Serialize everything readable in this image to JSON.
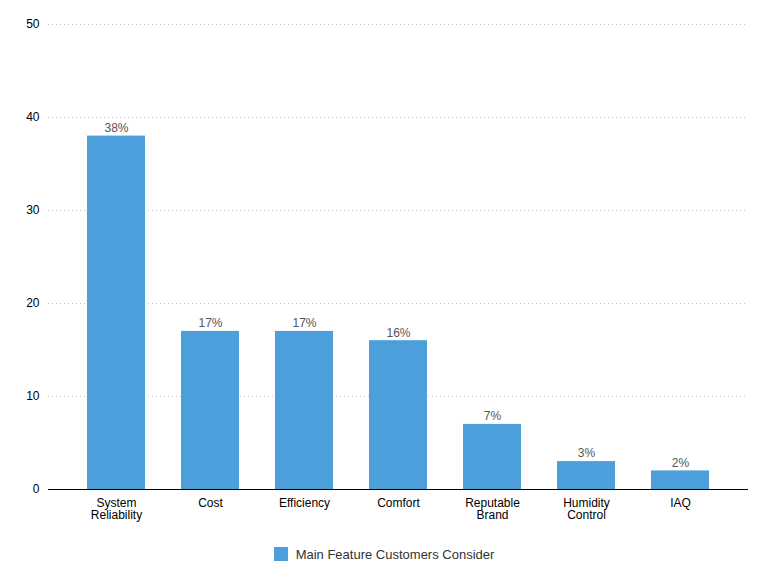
{
  "chart_data": {
    "type": "bar",
    "categories": [
      "System\nReliability",
      "Cost",
      "Efficiency",
      "Comfort",
      "Reputable\nBrand",
      "Humidity\nControl",
      "IAQ"
    ],
    "series": [
      {
        "name": "Main Feature Customers Consider",
        "color": "#4d9fdb",
        "values": [
          38,
          17,
          17,
          16,
          7,
          3,
          2
        ],
        "value_labels": [
          "38%",
          "17%",
          "17%",
          "16%",
          "7%",
          "3%",
          "2%"
        ]
      }
    ],
    "ylim": [
      0,
      50
    ],
    "yticks": [
      0,
      10,
      20,
      30,
      40,
      50
    ],
    "grid": true,
    "data_labels": true,
    "legend": "bottom"
  }
}
